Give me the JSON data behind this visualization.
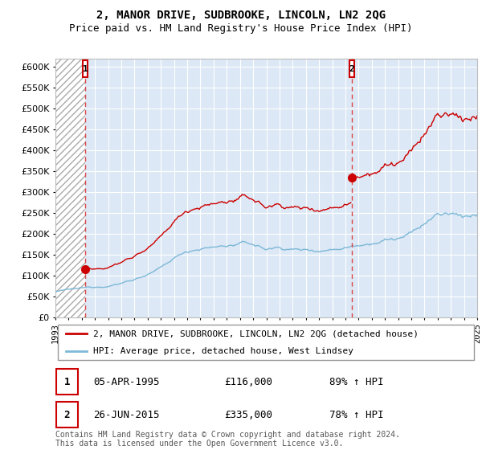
{
  "title": "2, MANOR DRIVE, SUDBROOKE, LINCOLN, LN2 2QG",
  "subtitle": "Price paid vs. HM Land Registry's House Price Index (HPI)",
  "ylabel_values": [
    0,
    50000,
    100000,
    150000,
    200000,
    250000,
    300000,
    350000,
    400000,
    450000,
    500000,
    550000,
    600000
  ],
  "ylim": [
    0,
    620000
  ],
  "x_start_year": 1993,
  "x_end_year": 2025,
  "sale1_date": 1995.26,
  "sale1_price": 116000,
  "sale2_date": 2015.48,
  "sale2_price": 335000,
  "hpi_color": "#7db8d8",
  "price_color": "#cc0000",
  "vline_color": "#dd4444",
  "bg_color": "#dce8f5",
  "hatch_bg": "#ffffff",
  "grid_color": "#ffffff",
  "legend_label_price": "2, MANOR DRIVE, SUDBROOKE, LINCOLN, LN2 2QG (detached house)",
  "legend_label_hpi": "HPI: Average price, detached house, West Lindsey",
  "table_row1_date": "05-APR-1995",
  "table_row1_price": "£116,000",
  "table_row1_hpi": "89% ↑ HPI",
  "table_row2_date": "26-JUN-2015",
  "table_row2_price": "£335,000",
  "table_row2_hpi": "78% ↑ HPI",
  "footer": "Contains HM Land Registry data © Crown copyright and database right 2024.\nThis data is licensed under the Open Government Licence v3.0."
}
